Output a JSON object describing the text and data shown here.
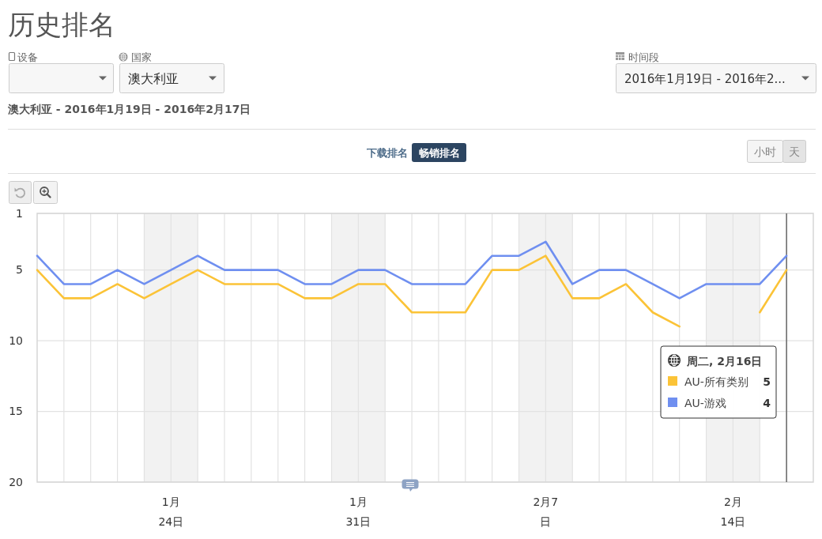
{
  "chart_data": {
    "type": "line",
    "title": "历史排名",
    "subtitle": "澳大利亚 - 2016年1月19日 - 2016年2月17日",
    "x": [
      "2016-01-19",
      "2016-01-20",
      "2016-01-21",
      "2016-01-22",
      "2016-01-23",
      "2016-01-24",
      "2016-01-25",
      "2016-01-26",
      "2016-01-27",
      "2016-01-28",
      "2016-01-29",
      "2016-01-30",
      "2016-01-31",
      "2016-02-01",
      "2016-02-02",
      "2016-02-03",
      "2016-02-04",
      "2016-02-05",
      "2016-02-06",
      "2016-02-07",
      "2016-02-08",
      "2016-02-09",
      "2016-02-10",
      "2016-02-11",
      "2016-02-12",
      "2016-02-13",
      "2016-02-14",
      "2016-02-15",
      "2016-02-16"
    ],
    "series": [
      {
        "name": "AU-所有类别",
        "color": "#fbc337",
        "values": [
          5,
          7,
          7,
          6,
          7,
          6,
          5,
          6,
          6,
          6,
          7,
          7,
          6,
          6,
          8,
          8,
          8,
          5,
          5,
          4,
          7,
          7,
          6,
          8,
          9,
          null,
          null,
          8,
          5
        ]
      },
      {
        "name": "AU-游戏",
        "color": "#6f8ff0",
        "values": [
          4,
          6,
          6,
          5,
          6,
          5,
          4,
          5,
          5,
          5,
          6,
          6,
          5,
          5,
          6,
          6,
          6,
          4,
          4,
          3,
          6,
          5,
          5,
          6,
          7,
          6,
          6,
          6,
          4
        ]
      }
    ],
    "xlim": [
      "2016-01-19",
      "2016-02-17"
    ],
    "xticks": [
      {
        "value": "2016-01-20",
        "label": null
      },
      {
        "value": "2016-01-21",
        "label": null
      },
      {
        "value": "2016-01-22",
        "label": null
      },
      {
        "value": "2016-01-23",
        "label": null
      },
      {
        "value": "2016-01-24",
        "label": "1月\n24日"
      },
      {
        "value": "2016-01-25",
        "label": null
      },
      {
        "value": "2016-01-26",
        "label": null
      },
      {
        "value": "2016-01-27",
        "label": null
      },
      {
        "value": "2016-01-28",
        "label": null
      },
      {
        "value": "2016-01-29",
        "label": null
      },
      {
        "value": "2016-01-30",
        "label": null
      },
      {
        "value": "2016-01-31",
        "label": "1月\n31日"
      },
      {
        "value": "2016-02-01",
        "label": null
      },
      {
        "value": "2016-02-02",
        "label": null
      },
      {
        "value": "2016-02-03",
        "label": null
      },
      {
        "value": "2016-02-04",
        "label": null
      },
      {
        "value": "2016-02-05",
        "label": null
      },
      {
        "value": "2016-02-06",
        "label": null
      },
      {
        "value": "2016-02-07",
        "label": "2月7\n日"
      },
      {
        "value": "2016-02-08",
        "label": null
      },
      {
        "value": "2016-02-09",
        "label": null
      },
      {
        "value": "2016-02-10",
        "label": null
      },
      {
        "value": "2016-02-11",
        "label": null
      },
      {
        "value": "2016-02-12",
        "label": null
      },
      {
        "value": "2016-02-13",
        "label": null
      },
      {
        "value": "2016-02-14",
        "label": "2月\n14日"
      },
      {
        "value": "2016-02-15",
        "label": null
      },
      {
        "value": "2016-02-16",
        "label": null
      }
    ],
    "ylim": [
      20,
      1
    ],
    "yticks": [
      1,
      5,
      10,
      15,
      20
    ],
    "grid": true,
    "legend": "right",
    "legend_title": "周二, 2月16日",
    "bands": [
      {
        "axis": "x",
        "from": "2016-01-23",
        "to": "2016-01-25",
        "color": "#f2f2f2"
      },
      {
        "axis": "x",
        "from": "2016-01-30",
        "to": "2016-02-01",
        "color": "#f2f2f2"
      },
      {
        "axis": "x",
        "from": "2016-02-06",
        "to": "2016-02-08",
        "color": "#f2f2f2"
      },
      {
        "axis": "x",
        "from": "2016-02-13",
        "to": "2016-02-15",
        "color": "#f2f2f2"
      }
    ],
    "ref_lines": [
      {
        "axis": "x",
        "value": "2016-02-16",
        "color": "#555555"
      }
    ],
    "annotations": [
      "设备",
      "国家",
      "澳大利亚",
      "时间段",
      "2016年1月19日 - 2016年2...",
      "下载排名",
      "畅销排名",
      "小时",
      "天",
      "5",
      "4"
    ]
  }
}
